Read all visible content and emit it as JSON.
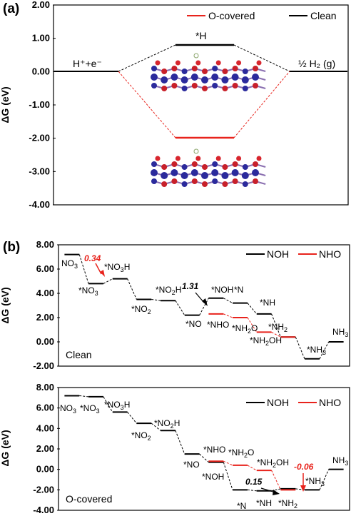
{
  "chart_data": [
    {
      "panel": "(a)",
      "type": "line",
      "ylabel": "ΔG (eV)",
      "yticks": [
        "2.00",
        "1.00",
        "0.00",
        "-1.00",
        "-2.00",
        "-3.00",
        "-4.00"
      ],
      "ylim": [
        -4.0,
        2.0
      ],
      "legend_placement": "top-right",
      "legend": [
        {
          "name": "O-covered",
          "color": "#e8231c"
        },
        {
          "name": "Clean",
          "color": "#000000"
        }
      ],
      "states": [
        {
          "label": "H⁺+e⁻",
          "clean": 0.0,
          "o_covered": 0.0
        },
        {
          "label": "*H",
          "clean": 0.8,
          "o_covered": -2.0
        },
        {
          "label": "½ H₂ (g)",
          "clean": 0.0,
          "o_covered": 0.0
        }
      ]
    },
    {
      "panel": "(b)",
      "condition": "Clean",
      "type": "line",
      "ylabel": "ΔG (eV)",
      "yticks": [
        "8.00",
        "6.00",
        "4.00",
        "2.00",
        "0.00",
        "-2.00"
      ],
      "ylim": [
        -2.0,
        8.0
      ],
      "legend_placement": "top-right",
      "legend": [
        {
          "name": "NOH",
          "color": "#000000"
        },
        {
          "name": "NHO",
          "color": "#e8231c"
        }
      ],
      "series": [
        {
          "name": "NOH",
          "color": "#000000",
          "levels": [
            7.2,
            4.8,
            5.2,
            3.5,
            3.4,
            2.2,
            3.6,
            3.2,
            2.3,
            0.4,
            -1.4,
            0.0
          ]
        },
        {
          "name": "NHO",
          "color": "#e8231c",
          "levels": [
            null,
            null,
            null,
            null,
            null,
            null,
            2.3,
            2.0,
            0.8,
            0.4,
            null,
            null
          ]
        }
      ],
      "annotations": [
        {
          "text": "0.34",
          "color": "#e8231c"
        },
        {
          "text": "1.31",
          "color": "#000000"
        }
      ]
    },
    {
      "condition": "O-covered",
      "type": "line",
      "ylabel": "ΔG (eV)",
      "yticks": [
        "8.00",
        "6.00",
        "4.00",
        "2.00",
        "0.00",
        "-2.00",
        "-4.00"
      ],
      "ylim": [
        -4.0,
        8.0
      ],
      "legend_placement": "top-right",
      "legend": [
        {
          "name": "NOH",
          "color": "#000000"
        },
        {
          "name": "NHO",
          "color": "#e8231c"
        }
      ],
      "series": [
        {
          "name": "NOH",
          "color": "#000000",
          "levels": [
            7.2,
            7.1,
            5.6,
            4.5,
            3.8,
            1.5,
            0.7,
            -2.0,
            -2.1,
            -1.9,
            -2.0,
            0.0
          ]
        },
        {
          "name": "NHO",
          "color": "#e8231c",
          "levels": [
            null,
            null,
            null,
            null,
            null,
            null,
            0.8,
            0.4,
            -0.1,
            -2.0,
            null,
            null
          ]
        }
      ],
      "annotations": [
        {
          "text": "0.15",
          "color": "#000000"
        },
        {
          "text": "-0.06",
          "color": "#e8231c"
        }
      ]
    }
  ]
}
